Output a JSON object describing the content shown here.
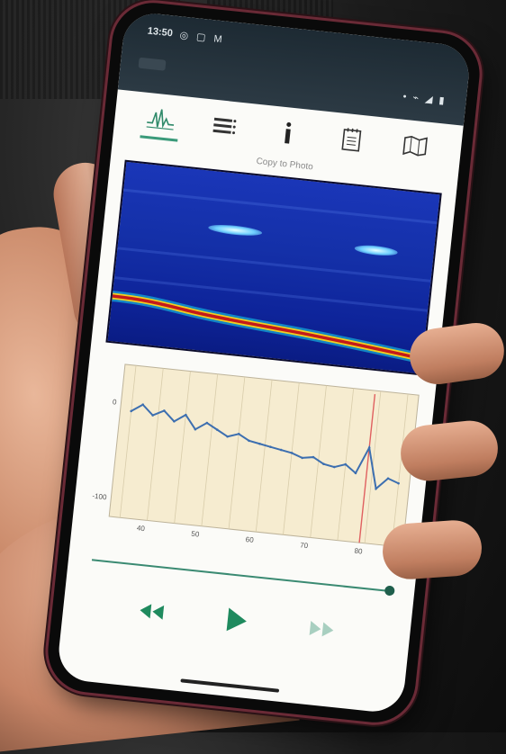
{
  "status_bar": {
    "time": "13:50",
    "left_icons": "◎ ▢ M",
    "right_icons": "• ⌁ ◢ ▮"
  },
  "toolbar": {
    "tabs": [
      {
        "icon": "waveform-icon",
        "active": true
      },
      {
        "icon": "list-icon",
        "active": false
      },
      {
        "icon": "info-icon",
        "active": false
      },
      {
        "icon": "notepad-icon",
        "active": false
      },
      {
        "icon": "map-icon",
        "active": false
      }
    ]
  },
  "copy_link": "Copy to Photo",
  "chart_data": {
    "type": "line",
    "y_tick_labels": [
      "0",
      "-100"
    ],
    "x_tick_labels": [
      "40",
      "50",
      "60",
      "70",
      "80"
    ],
    "x": [
      36,
      38,
      40,
      42,
      44,
      46,
      48,
      50,
      52,
      54,
      56,
      58,
      60,
      62,
      64,
      66,
      68,
      70,
      72,
      74,
      76,
      78,
      80,
      82,
      84,
      86
    ],
    "series": [
      {
        "values": [
          -8,
          0,
          -10,
          -4,
          -14,
          -6,
          -20,
          -12,
          -18,
          -24,
          -20,
          -26,
          -28,
          -30,
          -32,
          -34,
          -38,
          -36,
          -42,
          -44,
          -40,
          -48,
          -20,
          -62,
          -50,
          -54
        ]
      }
    ],
    "ylim": [
      -120,
      40
    ],
    "xlim": [
      34,
      88
    ],
    "grid": true,
    "colors": {
      "line": "#3d6fb0",
      "background": "#f6ecd0",
      "marker": "#e06060"
    }
  },
  "playback": {
    "controls": [
      {
        "name": "rewind",
        "icon": "rewind-icon"
      },
      {
        "name": "play",
        "icon": "play-icon"
      },
      {
        "name": "fast-forward",
        "icon": "fast-forward-icon"
      }
    ],
    "accent": "#1f8a5e"
  }
}
